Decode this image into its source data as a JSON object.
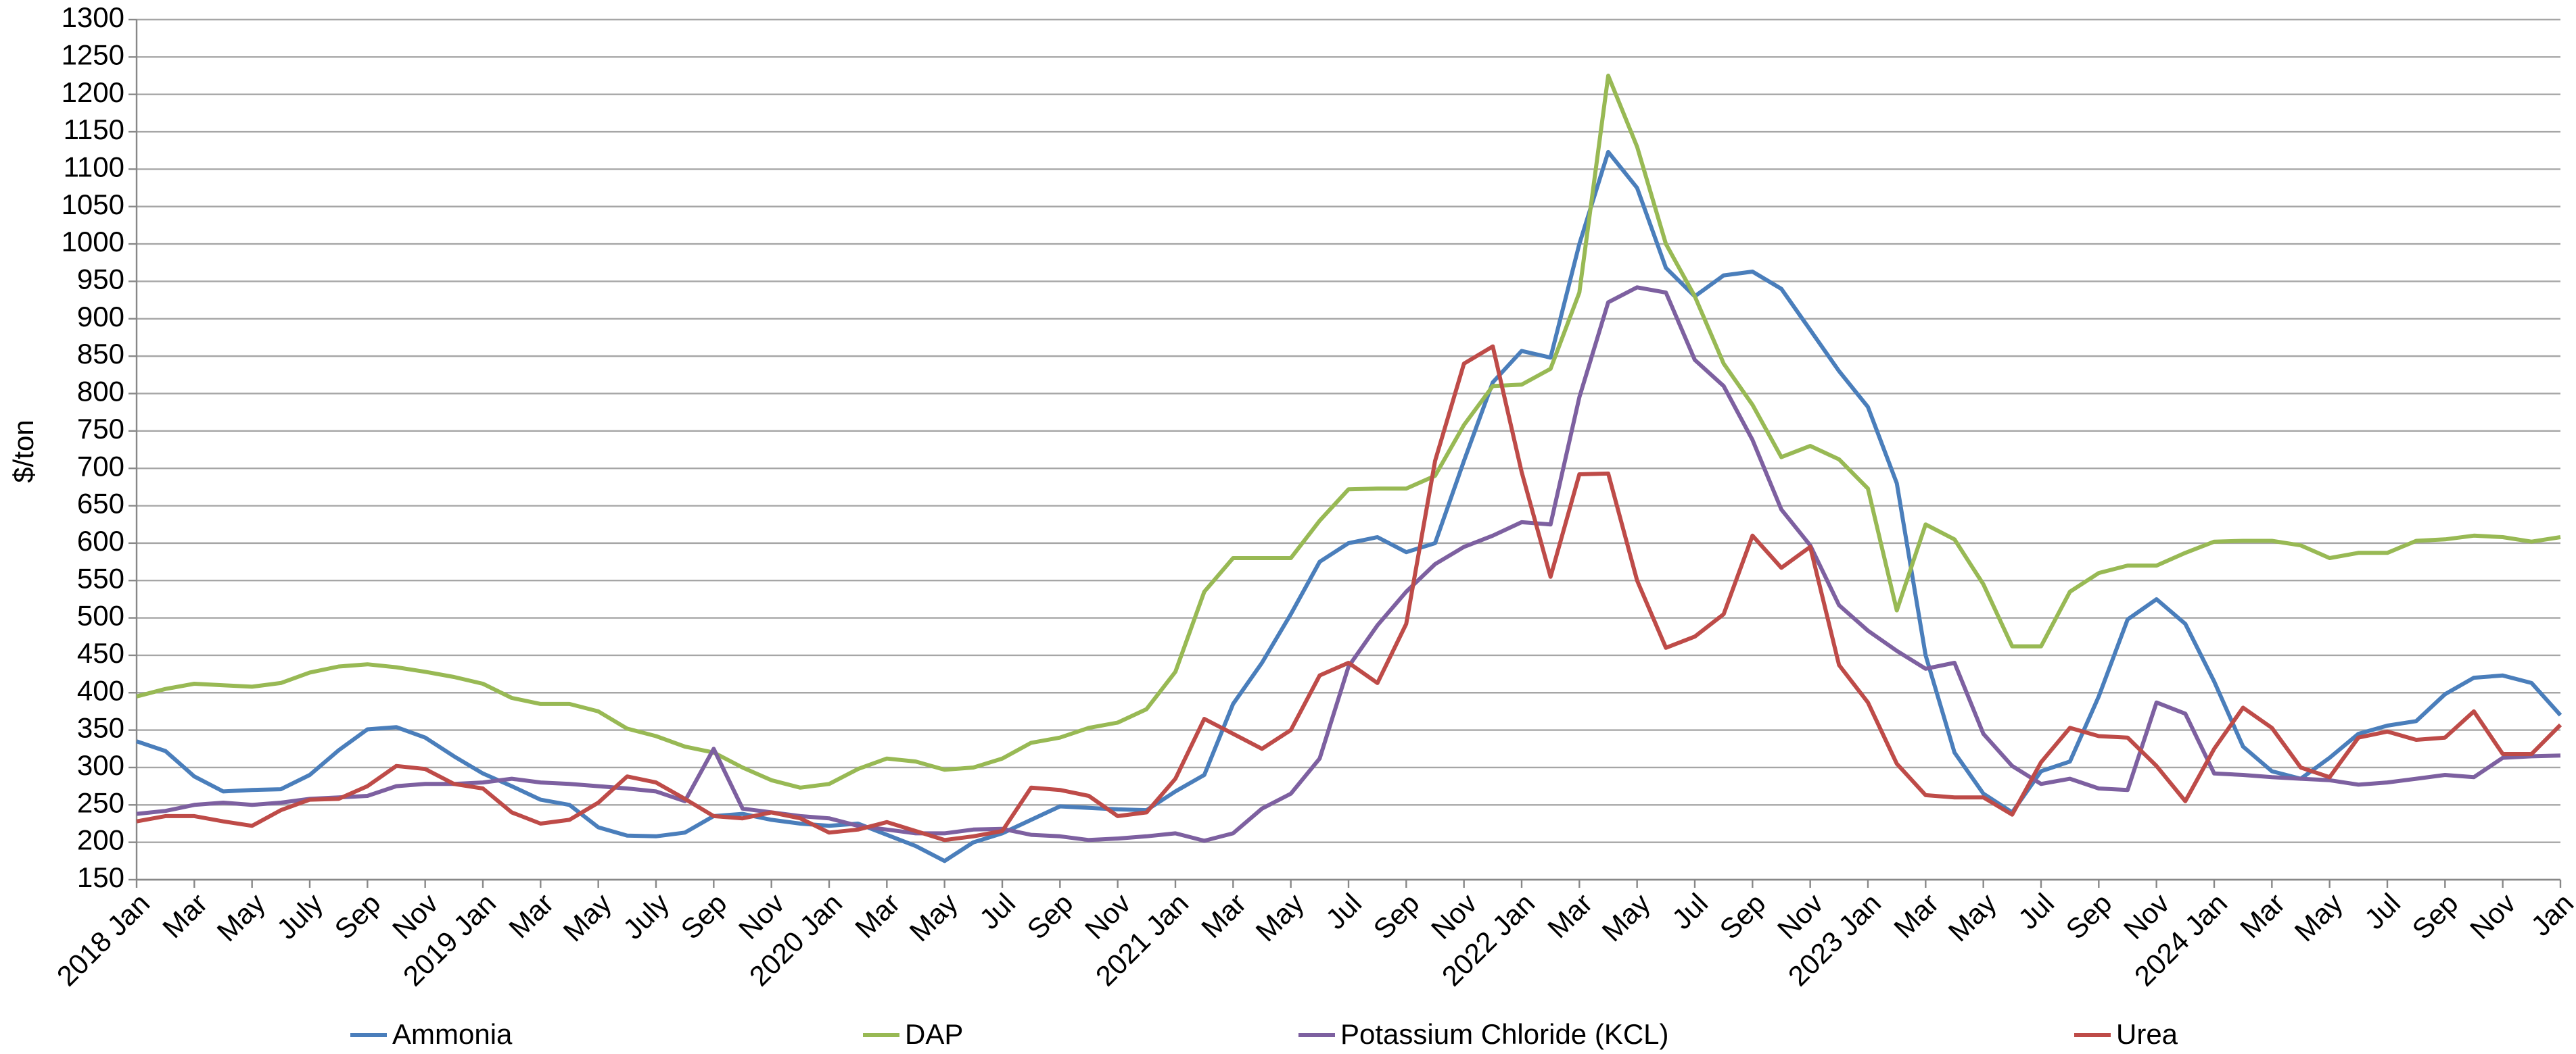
{
  "chart_data": {
    "type": "line",
    "y_label": "$/ton",
    "categories": [
      "2018 Jan",
      null,
      "Mar",
      null,
      "May",
      null,
      "July",
      null,
      "Sep",
      null,
      "Nov",
      null,
      "2019 Jan",
      null,
      "Mar",
      null,
      "May",
      null,
      "July",
      null,
      "Sep",
      null,
      "Nov",
      null,
      "2020 Jan",
      null,
      "Mar",
      null,
      "May",
      null,
      "Jul",
      null,
      "Sep",
      null,
      "Nov",
      null,
      "2021 Jan",
      null,
      "Mar",
      null,
      "May",
      null,
      "Jul",
      null,
      "Sep",
      null,
      "Nov",
      null,
      "2022 Jan",
      null,
      "Mar",
      null,
      "May",
      null,
      "Jul",
      null,
      "Sep",
      null,
      "Nov",
      null,
      "2023 Jan",
      null,
      "Mar",
      null,
      "May",
      null,
      "Jul",
      null,
      "Sep",
      null,
      "Nov",
      null,
      "2024 Jan",
      null,
      "Mar",
      null,
      "May",
      null,
      "Jul",
      null,
      "Sep",
      null,
      "Nov",
      null,
      "Jan"
    ],
    "series": [
      {
        "name": "Ammonia",
        "color": "#4a7ebb",
        "values": [
          335,
          322,
          288,
          268,
          270,
          271,
          290,
          323,
          351,
          354,
          340,
          315,
          292,
          275,
          257,
          250,
          220,
          209,
          208,
          213,
          235,
          238,
          230,
          225,
          222,
          225,
          210,
          195,
          175,
          200,
          212,
          230,
          248,
          246,
          244,
          243,
          268,
          290,
          385,
          440,
          505,
          575,
          600,
          608,
          588,
          600,
          710,
          815,
          857,
          848,
          1000,
          1123,
          1075,
          968,
          930,
          958,
          963,
          940,
          885,
          830,
          782,
          680,
          450,
          320,
          265,
          240,
          295,
          308,
          395,
          498,
          525,
          492,
          415,
          328,
          295,
          285,
          313,
          345,
          356,
          362,
          398,
          420,
          423,
          413,
          370
        ]
      },
      {
        "name": "DAP",
        "color": "#98b954",
        "values": [
          395,
          405,
          412,
          410,
          408,
          413,
          427,
          435,
          438,
          434,
          428,
          421,
          412,
          393,
          385,
          385,
          375,
          352,
          342,
          328,
          320,
          300,
          283,
          273,
          278,
          298,
          312,
          308,
          297,
          300,
          312,
          333,
          340,
          353,
          360,
          378,
          428,
          535,
          580,
          580,
          580,
          630,
          672,
          673,
          673,
          690,
          758,
          810,
          812,
          833,
          935,
          1225,
          1130,
          1000,
          930,
          840,
          785,
          715,
          730,
          712,
          673,
          510,
          625,
          605,
          545,
          462,
          462,
          535,
          560,
          570,
          570,
          587,
          602,
          603,
          603,
          597,
          580,
          587,
          587,
          603,
          605,
          610,
          608,
          602,
          608
        ]
      },
      {
        "name": "Potassium Chloride (KCL)",
        "color": "#7d60a0",
        "values": [
          238,
          242,
          250,
          253,
          250,
          253,
          258,
          260,
          262,
          275,
          278,
          278,
          280,
          285,
          280,
          278,
          275,
          272,
          268,
          255,
          325,
          245,
          240,
          235,
          232,
          222,
          217,
          212,
          212,
          217,
          218,
          210,
          208,
          203,
          205,
          208,
          212,
          202,
          212,
          245,
          265,
          312,
          435,
          490,
          535,
          572,
          595,
          610,
          628,
          625,
          795,
          922,
          942,
          935,
          845,
          810,
          738,
          645,
          597,
          517,
          483,
          456,
          432,
          440,
          345,
          302,
          278,
          285,
          272,
          270,
          387,
          372,
          292,
          290,
          287,
          285,
          283,
          277,
          280,
          285,
          290,
          287,
          313,
          315,
          316
        ]
      },
      {
        "name": "Urea",
        "color": "#be4b48",
        "values": [
          228,
          235,
          235,
          228,
          222,
          243,
          257,
          258,
          275,
          302,
          298,
          278,
          272,
          240,
          225,
          230,
          253,
          288,
          280,
          258,
          235,
          232,
          240,
          232,
          213,
          217,
          227,
          215,
          203,
          208,
          215,
          273,
          270,
          262,
          235,
          240,
          285,
          365,
          345,
          325,
          350,
          423,
          440,
          413,
          492,
          710,
          840,
          863,
          695,
          555,
          692,
          693,
          550,
          460,
          475,
          505,
          610,
          567,
          595,
          437,
          387,
          305,
          263,
          260,
          260,
          237,
          307,
          353,
          342,
          340,
          302,
          255,
          325,
          380,
          353,
          300,
          287,
          340,
          348,
          337,
          340,
          375,
          318,
          318,
          357
        ]
      }
    ],
    "ylim": [
      150,
      1300
    ],
    "yticks": [
      150,
      200,
      250,
      300,
      350,
      400,
      450,
      500,
      550,
      600,
      650,
      700,
      750,
      800,
      850,
      900,
      950,
      1000,
      1050,
      1100,
      1150,
      1200,
      1250,
      1300
    ],
    "grid": true,
    "legend": "bottom"
  }
}
